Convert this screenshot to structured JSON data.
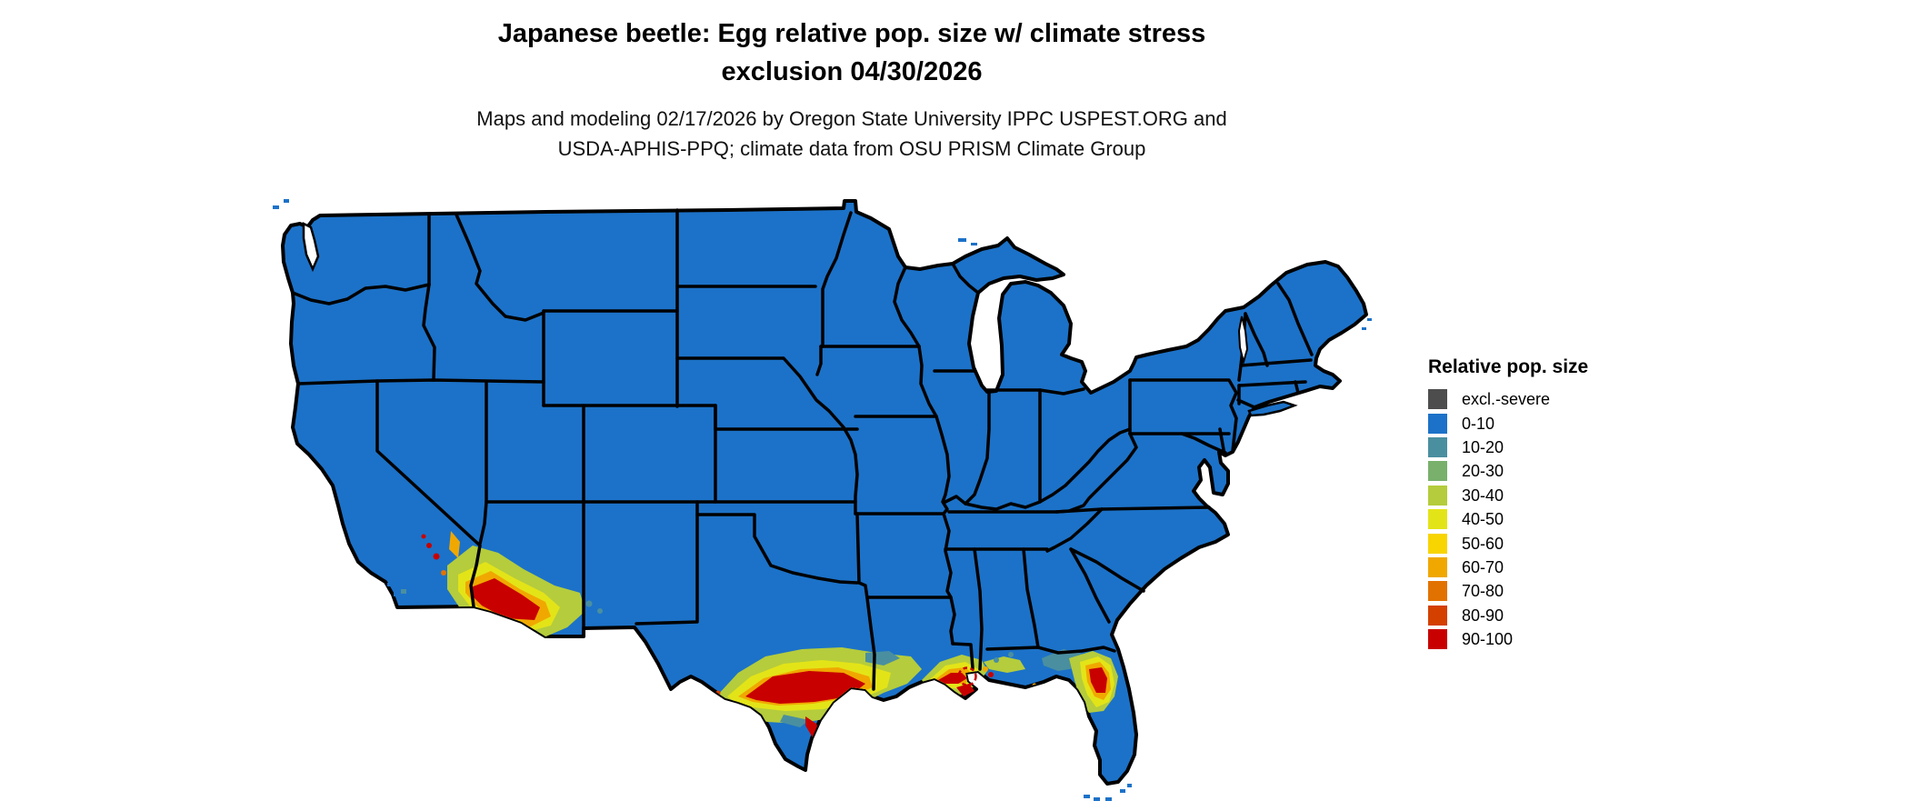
{
  "figure": {
    "title": "Japanese beetle: Egg relative pop. size w/ climate stress\nexclusion 04/30/2026",
    "subtitle": "Maps and modeling 02/17/2026 by Oregon State University IPPC USPEST.ORG and\nUSDA-APHIS-PPQ; climate data from OSU PRISM Climate Group"
  },
  "legend": {
    "title": "Relative pop. size",
    "items": [
      {
        "label": "excl.-severe",
        "color": "#4d4d4d"
      },
      {
        "label": "0-10",
        "color": "#1c72c8"
      },
      {
        "label": "10-20",
        "color": "#4a8fa0"
      },
      {
        "label": "20-30",
        "color": "#78b06c"
      },
      {
        "label": "30-40",
        "color": "#b5cc3c"
      },
      {
        "label": "40-50",
        "color": "#e3e418"
      },
      {
        "label": "50-60",
        "color": "#f8d400"
      },
      {
        "label": "60-70",
        "color": "#f0a800"
      },
      {
        "label": "70-80",
        "color": "#e27200"
      },
      {
        "label": "80-90",
        "color": "#d44000"
      },
      {
        "label": "90-100",
        "color": "#c80000"
      }
    ]
  },
  "map": {
    "region": "Continental United States",
    "background": "#ffffff",
    "state_border_color": "#000000",
    "base_value_range": "0-10",
    "hotspots": [
      {
        "region": "Southeastern California / southern Arizona",
        "value_range": "30-100"
      },
      {
        "region": "Rio Grande / Del Rio Texas",
        "value_range": "60-100"
      },
      {
        "region": "South-central Texas Gulf Coast",
        "value_range": "10-100"
      },
      {
        "region": "Louisiana Gulf Coast and Mississippi River delta",
        "value_range": "20-100"
      },
      {
        "region": "Mississippi / Alabama coast",
        "value_range": "10-40"
      },
      {
        "region": "North-central Florida",
        "value_range": "10-100"
      }
    ],
    "marker": {
      "type": "dashed-circle",
      "color": "#c80000",
      "location": "Louisiana coast near delta"
    }
  }
}
